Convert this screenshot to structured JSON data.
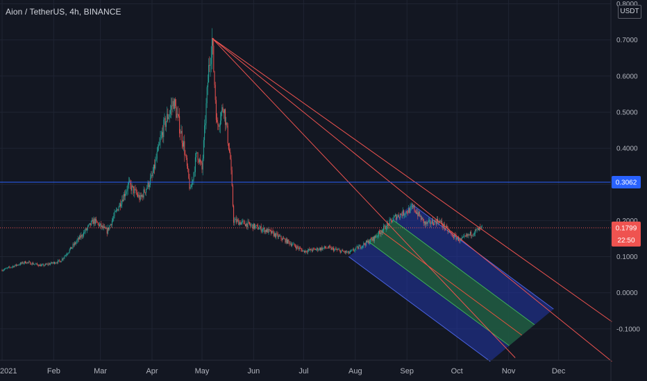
{
  "header": {
    "title": "Aion / TetherUS, 4h, BINANCE",
    "currency": "USDT"
  },
  "colors": {
    "background": "#131722",
    "grid": "#1f2432",
    "up": "#26a69a",
    "down": "#ef5350",
    "blue_line": "#2962ff",
    "red_line": "#ef5350",
    "channel_outer_fill": "#2237a8",
    "channel_inner_fill": "#1f5a36"
  },
  "chart_data": {
    "type": "candlestick",
    "timeframe": "4h",
    "symbol": "Aion / TetherUS",
    "exchange": "BINANCE",
    "y_range": [
      -0.18,
      0.81
    ],
    "y_ticks": [
      "0.8000",
      "0.7000",
      "0.6000",
      "0.5000",
      "0.4000",
      "0.3000",
      "0.2000",
      "0.1000",
      "0.0000",
      "-0.1000"
    ],
    "x_ticks": [
      "2021",
      "Feb",
      "Mar",
      "Apr",
      "May",
      "Jun",
      "Jul",
      "Aug",
      "Sep",
      "Oct",
      "Nov",
      "Dec"
    ],
    "price_path": [
      [
        "2021-01-01",
        0.063
      ],
      [
        "2021-01-15",
        0.085
      ],
      [
        "2021-01-25",
        0.075
      ],
      [
        "2021-02-05",
        0.088
      ],
      [
        "2021-02-18",
        0.16
      ],
      [
        "2021-02-25",
        0.2
      ],
      [
        "2021-03-05",
        0.17
      ],
      [
        "2021-03-12",
        0.24
      ],
      [
        "2021-03-18",
        0.3
      ],
      [
        "2021-03-25",
        0.26
      ],
      [
        "2021-04-01",
        0.32
      ],
      [
        "2021-04-08",
        0.46
      ],
      [
        "2021-04-14",
        0.53
      ],
      [
        "2021-04-20",
        0.41
      ],
      [
        "2021-04-24",
        0.28
      ],
      [
        "2021-04-28",
        0.39
      ],
      [
        "2021-05-01",
        0.34
      ],
      [
        "2021-05-05",
        0.62
      ],
      [
        "2021-05-07",
        0.7
      ],
      [
        "2021-05-10",
        0.46
      ],
      [
        "2021-05-14",
        0.52
      ],
      [
        "2021-05-18",
        0.37
      ],
      [
        "2021-05-20",
        0.2
      ],
      [
        "2021-05-28",
        0.19
      ],
      [
        "2021-06-10",
        0.17
      ],
      [
        "2021-06-22",
        0.14
      ],
      [
        "2021-07-01",
        0.115
      ],
      [
        "2021-07-15",
        0.125
      ],
      [
        "2021-07-28",
        0.11
      ],
      [
        "2021-08-12",
        0.15
      ],
      [
        "2021-08-25",
        0.21
      ],
      [
        "2021-09-05",
        0.235
      ],
      [
        "2021-09-12",
        0.19
      ],
      [
        "2021-09-20",
        0.2
      ],
      [
        "2021-09-28",
        0.16
      ],
      [
        "2021-10-03",
        0.145
      ],
      [
        "2021-10-10",
        0.165
      ],
      [
        "2021-10-16",
        0.18
      ]
    ],
    "last_price": "0.1799",
    "countdown": "22:50",
    "horizontal_line": {
      "value": 0.3062,
      "label": "0.3062"
    },
    "trend_lines": [
      {
        "from": [
          "2021-05-07",
          0.705
        ],
        "to": [
          "2022-01-02",
          -0.19
        ]
      },
      {
        "from": [
          "2021-05-07",
          0.705
        ],
        "to": [
          "2022-01-02",
          -0.08
        ]
      },
      {
        "from": [
          "2021-05-07",
          0.705
        ],
        "to": [
          "2021-11-05",
          -0.18
        ]
      }
    ],
    "channel": {
      "top_left": [
        "2021-07-28",
        0.1
      ],
      "top_right": [
        "2021-09-04",
        0.245
      ],
      "bottom_left": [
        "2021-10-21",
        -0.19
      ],
      "bottom_right": [
        "2021-11-28",
        -0.045
      ],
      "inner_band": [
        0.3,
        0.7
      ]
    }
  }
}
